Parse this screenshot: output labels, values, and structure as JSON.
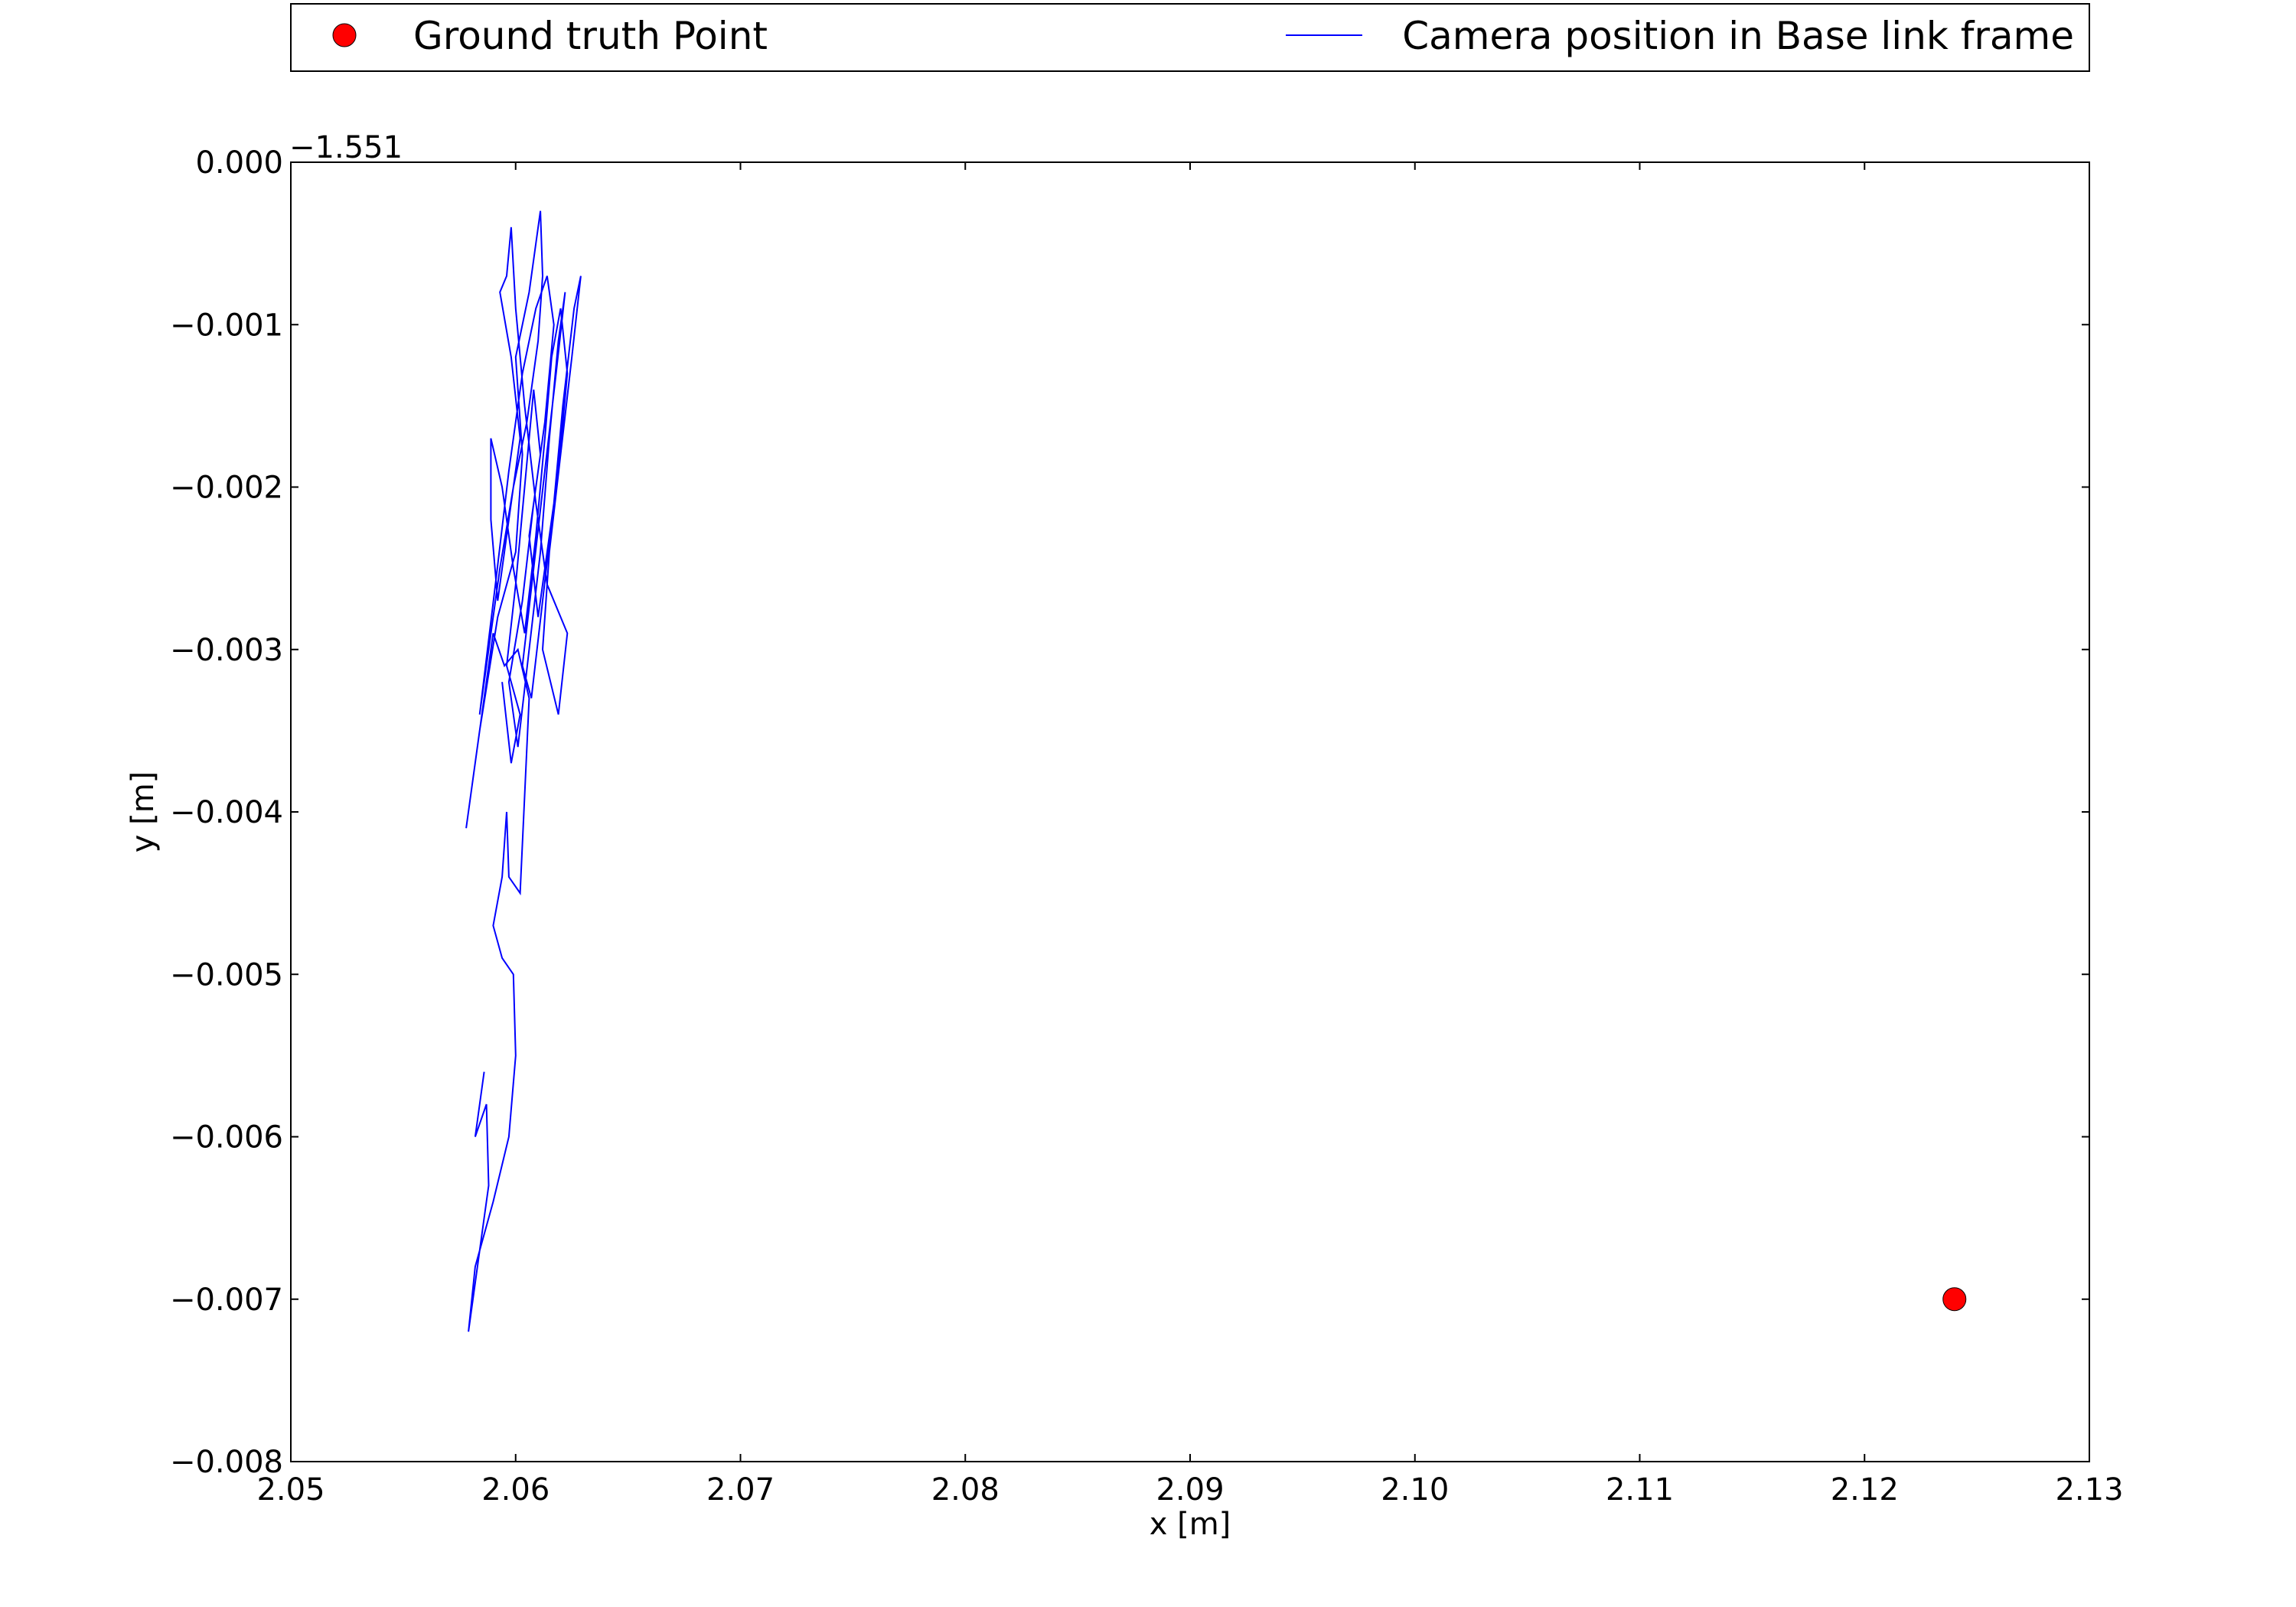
{
  "chart_data": {
    "type": "line",
    "xlabel": "x [m]",
    "ylabel": "y [m]",
    "y_offset_label": "−1.551",
    "xlim": [
      2.05,
      2.13
    ],
    "ylim": [
      -0.008,
      0.0
    ],
    "x_ticks": [
      2.05,
      2.06,
      2.07,
      2.08,
      2.09,
      2.1,
      2.11,
      2.12,
      2.13
    ],
    "x_tick_labels": [
      "2.05",
      "2.06",
      "2.07",
      "2.08",
      "2.09",
      "2.10",
      "2.11",
      "2.12",
      "2.13"
    ],
    "y_ticks": [
      0.0,
      -0.001,
      -0.002,
      -0.003,
      -0.004,
      -0.005,
      -0.006,
      -0.007,
      -0.008
    ],
    "y_tick_labels": [
      "0.000",
      "−0.001",
      "−0.002",
      "−0.003",
      "−0.004",
      "−0.005",
      "−0.006",
      "−0.007",
      "−0.008"
    ],
    "grid": false,
    "legend_placement": "top, above plot, two columns",
    "series": [
      {
        "name": "Ground truth Point",
        "kind": "scatter",
        "color": "#ff0000",
        "points": [
          [
            2.124,
            -0.007
          ]
        ]
      },
      {
        "name": "Camera position in Base link frame",
        "kind": "line",
        "color": "#0000ff",
        "points": [
          [
            2.0586,
            -0.0056
          ],
          [
            2.0582,
            -0.006
          ],
          [
            2.0587,
            -0.0058
          ],
          [
            2.0588,
            -0.0063
          ],
          [
            2.0586,
            -0.0065
          ],
          [
            2.0582,
            -0.0069
          ],
          [
            2.0579,
            -0.0072
          ],
          [
            2.0582,
            -0.0068
          ],
          [
            2.059,
            -0.0064
          ],
          [
            2.0597,
            -0.006
          ],
          [
            2.06,
            -0.0055
          ],
          [
            2.0599,
            -0.005
          ],
          [
            2.0594,
            -0.0049
          ],
          [
            2.059,
            -0.0047
          ],
          [
            2.0594,
            -0.0044
          ],
          [
            2.0596,
            -0.004
          ],
          [
            2.0597,
            -0.0044
          ],
          [
            2.0602,
            -0.0045
          ],
          [
            2.0604,
            -0.0039
          ],
          [
            2.0606,
            -0.0033
          ],
          [
            2.0601,
            -0.003
          ],
          [
            2.0595,
            -0.0031
          ],
          [
            2.059,
            -0.0029
          ],
          [
            2.0586,
            -0.0033
          ],
          [
            2.0578,
            -0.0041
          ],
          [
            2.0584,
            -0.0035
          ],
          [
            2.0592,
            -0.0028
          ],
          [
            2.06,
            -0.0024
          ],
          [
            2.0603,
            -0.0018
          ],
          [
            2.06,
            -0.0012
          ],
          [
            2.0606,
            -0.0008
          ],
          [
            2.0609,
            -0.0005
          ],
          [
            2.0611,
            -0.0003
          ],
          [
            2.0612,
            -0.0007
          ],
          [
            2.061,
            -0.0011
          ],
          [
            2.0605,
            -0.0016
          ],
          [
            2.0599,
            -0.002
          ],
          [
            2.0593,
            -0.0025
          ],
          [
            2.0588,
            -0.003
          ],
          [
            2.0584,
            -0.0034
          ],
          [
            2.0591,
            -0.0026
          ],
          [
            2.0597,
            -0.0019
          ],
          [
            2.0603,
            -0.0013
          ],
          [
            2.0609,
            -0.0009
          ],
          [
            2.0614,
            -0.0007
          ],
          [
            2.0617,
            -0.001
          ],
          [
            2.0613,
            -0.0016
          ],
          [
            2.0608,
            -0.0021
          ],
          [
            2.0603,
            -0.0027
          ],
          [
            2.0597,
            -0.0032
          ],
          [
            2.0601,
            -0.0036
          ],
          [
            2.0606,
            -0.003
          ],
          [
            2.0611,
            -0.0024
          ],
          [
            2.0615,
            -0.0017
          ],
          [
            2.0619,
            -0.0011
          ],
          [
            2.0622,
            -0.0008
          ],
          [
            2.0618,
            -0.0013
          ],
          [
            2.0613,
            -0.0019
          ],
          [
            2.0608,
            -0.0025
          ],
          [
            2.0603,
            -0.0031
          ],
          [
            2.0607,
            -0.0033
          ],
          [
            2.0612,
            -0.0027
          ],
          [
            2.0617,
            -0.0021
          ],
          [
            2.0621,
            -0.0015
          ],
          [
            2.0626,
            -0.0009
          ],
          [
            2.0629,
            -0.0007
          ],
          [
            2.0625,
            -0.0012
          ],
          [
            2.062,
            -0.0018
          ],
          [
            2.0615,
            -0.0024
          ],
          [
            2.0612,
            -0.003
          ],
          [
            2.0619,
            -0.0034
          ],
          [
            2.0623,
            -0.0029
          ],
          [
            2.0614,
            -0.0026
          ],
          [
            2.0609,
            -0.0021
          ],
          [
            2.0604,
            -0.0015
          ],
          [
            2.06,
            -0.0009
          ],
          [
            2.0598,
            -0.0004
          ],
          [
            2.0596,
            -0.0007
          ],
          [
            2.0593,
            -0.0008
          ],
          [
            2.0598,
            -0.0012
          ],
          [
            2.0602,
            -0.0017
          ],
          [
            2.0597,
            -0.0022
          ],
          [
            2.0592,
            -0.0027
          ],
          [
            2.0589,
            -0.0022
          ],
          [
            2.0589,
            -0.0017
          ],
          [
            2.0594,
            -0.002
          ],
          [
            2.0599,
            -0.0025
          ],
          [
            2.0604,
            -0.0029
          ],
          [
            2.0609,
            -0.0023
          ],
          [
            2.0613,
            -0.0017
          ],
          [
            2.0616,
            -0.0012
          ],
          [
            2.062,
            -0.0009
          ],
          [
            2.0623,
            -0.0013
          ],
          [
            2.0619,
            -0.0019
          ],
          [
            2.0614,
            -0.0024
          ],
          [
            2.061,
            -0.0028
          ],
          [
            2.0606,
            -0.0023
          ],
          [
            2.0611,
            -0.0018
          ],
          [
            2.0608,
            -0.0014
          ],
          [
            2.0604,
            -0.002
          ],
          [
            2.06,
            -0.0026
          ],
          [
            2.0596,
            -0.0031
          ],
          [
            2.0602,
            -0.0034
          ],
          [
            2.0598,
            -0.0037
          ],
          [
            2.0594,
            -0.0032
          ]
        ]
      }
    ]
  }
}
